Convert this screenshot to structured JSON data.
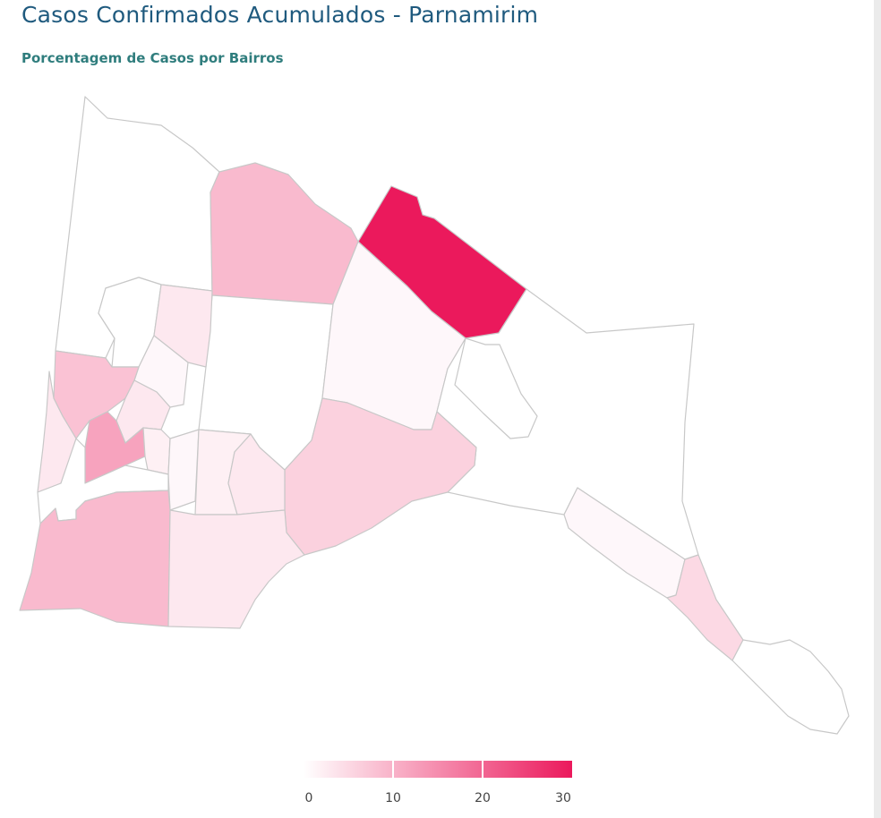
{
  "header": {
    "title": "Casos Confirmados Acumulados - Parnamirim",
    "subtitle": "Porcentagem de Casos por Bairros"
  },
  "map": {
    "scale": {
      "min": 0,
      "max": 30,
      "color_low": "#ffffff",
      "color_high": "#eb195c"
    },
    "border_color": "#c8c8c8",
    "regions": [
      {
        "id": "northwest",
        "value": 0
      },
      {
        "id": "north-center",
        "value": 9
      },
      {
        "id": "north-highlight",
        "value": 30
      },
      {
        "id": "central-block",
        "value": 0
      },
      {
        "id": "central-east",
        "value": 1
      },
      {
        "id": "east-small",
        "value": 4
      },
      {
        "id": "east-large",
        "value": 0
      },
      {
        "id": "south-center",
        "value": 6
      },
      {
        "id": "west-block",
        "value": 0
      },
      {
        "id": "west-small-1",
        "value": 3
      },
      {
        "id": "west-small-2",
        "value": 1
      },
      {
        "id": "west-a",
        "value": 8
      },
      {
        "id": "west-b",
        "value": 3
      },
      {
        "id": "west-c",
        "value": 12
      },
      {
        "id": "west-d",
        "value": 2
      },
      {
        "id": "west-e",
        "value": 1
      },
      {
        "id": "west-f",
        "value": 2
      },
      {
        "id": "west-g",
        "value": 3
      },
      {
        "id": "west-h",
        "value": 3
      },
      {
        "id": "west-strip",
        "value": 0
      },
      {
        "id": "southwest-large",
        "value": 9
      },
      {
        "id": "south-mid",
        "value": 3
      },
      {
        "id": "southeast-1",
        "value": 1
      },
      {
        "id": "southeast-2",
        "value": 5
      },
      {
        "id": "southeast-tip",
        "value": 0
      }
    ]
  },
  "legend": {
    "ticks": [
      {
        "value": 0,
        "label": "0"
      },
      {
        "value": 10,
        "label": "10"
      },
      {
        "value": 20,
        "label": "20"
      },
      {
        "value": 30,
        "label": "30"
      }
    ]
  }
}
